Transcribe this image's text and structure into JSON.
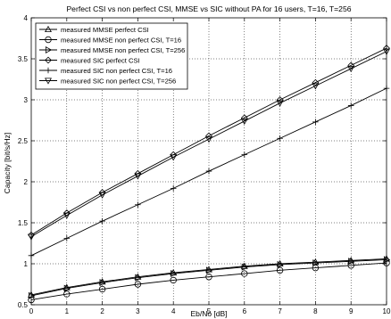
{
  "chart_data": {
    "type": "line",
    "title": "Perfect CSI vs non perfect CSI, MMSE vs SIC without PA for 16 users, T=16, T=256",
    "xlabel": "Eb/No [dB]",
    "ylabel": "Capacity [bit/s/Hz]",
    "xlim": [
      0,
      10
    ],
    "ylim": [
      0.5,
      4
    ],
    "xticks": [
      0,
      1,
      2,
      3,
      4,
      5,
      6,
      7,
      8,
      9,
      10
    ],
    "yticks": [
      0.5,
      1,
      1.5,
      2,
      2.5,
      3,
      3.5,
      4
    ],
    "grid": "dotted",
    "legend": "top-left",
    "x": [
      0,
      1,
      2,
      3,
      4,
      5,
      6,
      7,
      8,
      9,
      10
    ],
    "series": [
      {
        "name": "measured MMSE perfect CSI",
        "marker": "triangle-up",
        "values": [
          0.62,
          0.71,
          0.78,
          0.84,
          0.89,
          0.93,
          0.97,
          1.0,
          1.02,
          1.04,
          1.06
        ]
      },
      {
        "name": "measured MMSE non perfect CSI, T=16",
        "marker": "circle",
        "values": [
          0.56,
          0.63,
          0.69,
          0.75,
          0.8,
          0.84,
          0.88,
          0.92,
          0.95,
          0.98,
          1.01
        ]
      },
      {
        "name": "measured MMSE non perfect CSI, T=256",
        "marker": "triangle-right",
        "values": [
          0.61,
          0.7,
          0.77,
          0.83,
          0.88,
          0.92,
          0.96,
          0.99,
          1.01,
          1.03,
          1.05
        ]
      },
      {
        "name": "measured SIC perfect CSI",
        "marker": "diamond",
        "values": [
          1.35,
          1.62,
          1.87,
          2.1,
          2.33,
          2.56,
          2.78,
          3.0,
          3.21,
          3.42,
          3.63
        ]
      },
      {
        "name": "measured SIC non perfect CSI, T=16",
        "marker": "plus",
        "values": [
          1.1,
          1.31,
          1.52,
          1.72,
          1.92,
          2.13,
          2.33,
          2.53,
          2.73,
          2.93,
          3.14
        ]
      },
      {
        "name": "measured SIC non perfect CSI, T=256",
        "marker": "triangle-down",
        "values": [
          1.33,
          1.59,
          1.84,
          2.07,
          2.3,
          2.52,
          2.74,
          2.96,
          3.17,
          3.38,
          3.59
        ]
      }
    ]
  }
}
